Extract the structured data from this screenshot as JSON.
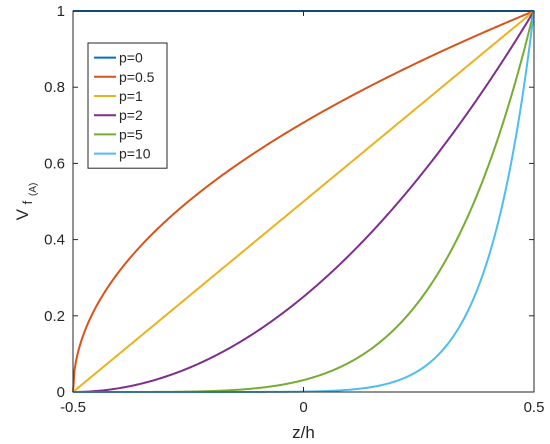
{
  "chart_data": {
    "type": "line",
    "xlabel": "z/h",
    "ylabel": {
      "main": "V",
      "sub": "f",
      "subsub": "(A)"
    },
    "xlim": [
      -0.5,
      0.5
    ],
    "ylim": [
      0,
      1
    ],
    "x_ticks": [
      -0.5,
      0,
      0.5
    ],
    "x_tick_labels": [
      "-0.5",
      "0",
      "0.5"
    ],
    "y_ticks": [
      0,
      0.2,
      0.4,
      0.6,
      0.8,
      1
    ],
    "y_tick_labels": [
      "0",
      "0.2",
      "0.4",
      "0.6",
      "0.8",
      "1"
    ],
    "grid": false,
    "legend_position": "top-left",
    "formula": "V = (0.5 + z/h)^p",
    "series": [
      {
        "name": "p=0",
        "p": 0,
        "color": "#0072bd"
      },
      {
        "name": "p=0.5",
        "p": 0.5,
        "color": "#d95319"
      },
      {
        "name": "p=1",
        "p": 1,
        "color": "#edb120"
      },
      {
        "name": "p=2",
        "p": 2,
        "color": "#7e2f8e"
      },
      {
        "name": "p=5",
        "p": 5,
        "color": "#77ac30"
      },
      {
        "name": "p=10",
        "p": 10,
        "color": "#4dbeee"
      }
    ]
  }
}
